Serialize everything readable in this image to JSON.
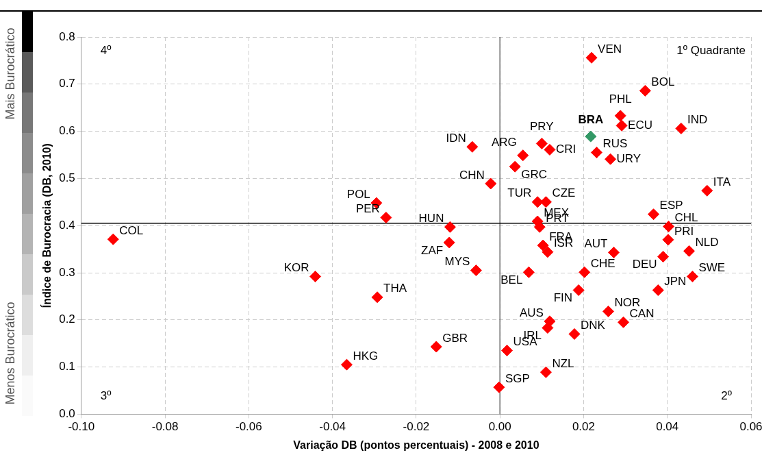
{
  "chart_data": {
    "type": "scatter",
    "xlabel": "Variação DB (pontos percentuais) - 2008 e 2010",
    "ylabel": "Índice de Burocracia (DB, 2010)",
    "xlim": [
      -0.1,
      0.06
    ],
    "ylim": [
      0,
      0.8
    ],
    "xticks": [
      {
        "value": -0.1,
        "label": "-0.10"
      },
      {
        "value": -0.08,
        "label": "-0.08"
      },
      {
        "value": -0.06,
        "label": "-0.06"
      },
      {
        "value": -0.04,
        "label": "-0.04"
      },
      {
        "value": -0.02,
        "label": "-0.02"
      },
      {
        "value": 0,
        "label": "0.00"
      },
      {
        "value": 0.02,
        "label": "0.02"
      },
      {
        "value": 0.04,
        "label": "0.04"
      },
      {
        "value": 0.06,
        "label": "0.06"
      }
    ],
    "yticks": [
      {
        "value": 0,
        "label": "0.0"
      },
      {
        "value": 0.1,
        "label": "0.1"
      },
      {
        "value": 0.2,
        "label": "0.2"
      },
      {
        "value": 0.3,
        "label": "0.3"
      },
      {
        "value": 0.4,
        "label": "0.4"
      },
      {
        "value": 0.5,
        "label": "0.5"
      },
      {
        "value": 0.6,
        "label": "0.6"
      },
      {
        "value": 0.7,
        "label": "0.7"
      },
      {
        "value": 0.8,
        "label": "0.8"
      }
    ],
    "grid": true,
    "legend": false,
    "marker": "diamond",
    "series": [
      {
        "color": "#ff0000",
        "x": [
          0.0219,
          0.0347,
          0.0288,
          0.0291,
          0.0433,
          0.0231,
          0.0264,
          0.01,
          0.0119,
          0.0055,
          0.0036,
          -0.0066,
          -0.0022,
          0.0495,
          0.009,
          0.011,
          0.0367,
          0.009,
          0.0095,
          0.0403,
          0.0402,
          0.0452,
          0.0272,
          0.0103,
          0.0114,
          0.039,
          0.046,
          0.0378,
          0.0202,
          0.0069,
          0.0188,
          0.0259,
          0.0295,
          0.0119,
          0.0114,
          0.0178,
          0.0017,
          0.011,
          -0.0002,
          -0.0152,
          -0.0366,
          -0.0293,
          -0.0441,
          -0.0057,
          -0.0121,
          -0.0119,
          -0.0272,
          -0.0295,
          -0.0924
        ],
        "values": [
          0.756,
          0.686,
          0.633,
          0.612,
          0.606,
          0.555,
          0.541,
          0.574,
          0.561,
          0.549,
          0.525,
          0.567,
          0.489,
          0.474,
          0.45,
          0.45,
          0.424,
          0.409,
          0.397,
          0.398,
          0.37,
          0.346,
          0.343,
          0.358,
          0.344,
          0.334,
          0.292,
          0.263,
          0.301,
          0.301,
          0.263,
          0.218,
          0.195,
          0.197,
          0.183,
          0.17,
          0.135,
          0.089,
          0.057,
          0.143,
          0.105,
          0.248,
          0.292,
          0.305,
          0.364,
          0.397,
          0.417,
          0.448,
          0.371
        ]
      },
      {
        "color": "#339966",
        "x": [
          0.0217
        ],
        "values": [
          0.589
        ]
      }
    ],
    "ref_lines": [
      {
        "axis": "x",
        "value": 0,
        "color": "#555555"
      },
      {
        "axis": "y",
        "value": 0.405,
        "color": "#000000"
      }
    ],
    "annotations": [
      "4º",
      "1º Quadrante",
      "3º",
      "2º",
      "Mais Burocrático",
      "Menos Burocrático",
      {
        "text": "VEN",
        "x": 0.0219,
        "y": 0.756
      },
      {
        "text": "BOL",
        "x": 0.0347,
        "y": 0.686
      },
      {
        "text": "PHL",
        "x": 0.0288,
        "y": 0.633
      },
      {
        "text": "ECU",
        "x": 0.0291,
        "y": 0.612
      },
      {
        "text": "IND",
        "x": 0.0433,
        "y": 0.606
      },
      {
        "text": "BRA",
        "x": 0.0217,
        "y": 0.589
      },
      {
        "text": "RUS",
        "x": 0.0231,
        "y": 0.555
      },
      {
        "text": "URY",
        "x": 0.0264,
        "y": 0.541
      },
      {
        "text": "PRY",
        "x": 0.01,
        "y": 0.574
      },
      {
        "text": "CRI",
        "x": 0.0119,
        "y": 0.561
      },
      {
        "text": "ARG",
        "x": 0.0055,
        "y": 0.549
      },
      {
        "text": "GRC",
        "x": 0.0036,
        "y": 0.525
      },
      {
        "text": "IDN",
        "x": -0.0066,
        "y": 0.567
      },
      {
        "text": "CHN",
        "x": -0.0022,
        "y": 0.489
      },
      {
        "text": "ITA",
        "x": 0.0495,
        "y": 0.474
      },
      {
        "text": "TUR",
        "x": 0.009,
        "y": 0.45
      },
      {
        "text": "CZE",
        "x": 0.011,
        "y": 0.45
      },
      {
        "text": "ESP",
        "x": 0.0367,
        "y": 0.424
      },
      {
        "text": "MEX",
        "x": 0.009,
        "y": 0.409
      },
      {
        "text": "PRT",
        "x": 0.0095,
        "y": 0.397
      },
      {
        "text": "CHL",
        "x": 0.0403,
        "y": 0.398
      },
      {
        "text": "PRI",
        "x": 0.0402,
        "y": 0.37
      },
      {
        "text": "NLD",
        "x": 0.0452,
        "y": 0.346
      },
      {
        "text": "AUT",
        "x": 0.0272,
        "y": 0.343
      },
      {
        "text": "FRA",
        "x": 0.0103,
        "y": 0.358
      },
      {
        "text": "ISR",
        "x": 0.0114,
        "y": 0.344
      },
      {
        "text": "DEU",
        "x": 0.039,
        "y": 0.334
      },
      {
        "text": "SWE",
        "x": 0.046,
        "y": 0.292
      },
      {
        "text": "JPN",
        "x": 0.0378,
        "y": 0.263
      },
      {
        "text": "CHE",
        "x": 0.0202,
        "y": 0.301
      },
      {
        "text": "BEL",
        "x": 0.0069,
        "y": 0.301
      },
      {
        "text": "FIN",
        "x": 0.0188,
        "y": 0.263
      },
      {
        "text": "NOR",
        "x": 0.0259,
        "y": 0.218
      },
      {
        "text": "CAN",
        "x": 0.0295,
        "y": 0.195
      },
      {
        "text": "AUS",
        "x": 0.0119,
        "y": 0.197
      },
      {
        "text": "IRL",
        "x": 0.0114,
        "y": 0.183
      },
      {
        "text": "DNK",
        "x": 0.0178,
        "y": 0.17
      },
      {
        "text": "USA",
        "x": 0.0017,
        "y": 0.135
      },
      {
        "text": "NZL",
        "x": 0.011,
        "y": 0.089
      },
      {
        "text": "SGP",
        "x": -0.0002,
        "y": 0.057
      },
      {
        "text": "GBR",
        "x": -0.0152,
        "y": 0.143
      },
      {
        "text": "HKG",
        "x": -0.0366,
        "y": 0.105
      },
      {
        "text": "THA",
        "x": -0.0293,
        "y": 0.248
      },
      {
        "text": "KOR",
        "x": -0.0441,
        "y": 0.292
      },
      {
        "text": "MYS",
        "x": -0.0057,
        "y": 0.305
      },
      {
        "text": "ZAF",
        "x": -0.0121,
        "y": 0.364
      },
      {
        "text": "HUN",
        "x": -0.0119,
        "y": 0.397
      },
      {
        "text": "PER",
        "x": -0.0272,
        "y": 0.417
      },
      {
        "text": "POL",
        "x": -0.0295,
        "y": 0.448
      },
      {
        "text": "COL",
        "x": -0.0924,
        "y": 0.371
      }
    ]
  }
}
